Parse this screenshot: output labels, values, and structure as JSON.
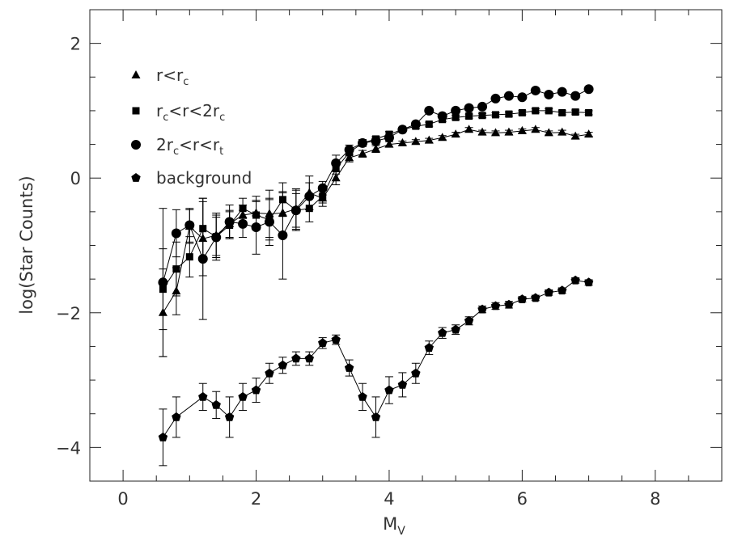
{
  "chart_data": {
    "type": "scatter",
    "xlabel": {
      "main": "M",
      "sub": "V"
    },
    "ylabel": "log(Star Counts)",
    "xlim": [
      -0.5,
      9.0
    ],
    "ylim": [
      -4.5,
      2.5
    ],
    "x_ticks": [
      "0",
      "2",
      "4",
      "6",
      "8"
    ],
    "x_tick_values": [
      0,
      2,
      4,
      6,
      8
    ],
    "y_ticks": [
      "−4",
      "−2",
      "0",
      "2"
    ],
    "y_tick_values": [
      -4,
      -2,
      0,
      2
    ],
    "grid": false,
    "legend_position": "top-left",
    "legend": [
      {
        "id": "inner",
        "marker": "triangle",
        "parts": [
          {
            "t": "r<r"
          },
          {
            "t": "c",
            "sub": true
          }
        ]
      },
      {
        "id": "middle",
        "marker": "square",
        "parts": [
          {
            "t": "r"
          },
          {
            "t": "c",
            "sub": true
          },
          {
            "t": "<r<2r"
          },
          {
            "t": "c",
            "sub": true
          }
        ]
      },
      {
        "id": "outer",
        "marker": "circle",
        "parts": [
          {
            "t": "2r"
          },
          {
            "t": "c",
            "sub": true
          },
          {
            "t": "<r<r"
          },
          {
            "t": "t",
            "sub": true
          }
        ]
      },
      {
        "id": "background",
        "marker": "pentagon",
        "parts": [
          {
            "t": "background"
          }
        ]
      }
    ],
    "series": [
      {
        "id": "inner",
        "marker": "triangle",
        "x": [
          0.6,
          0.8,
          1.0,
          1.2,
          1.4,
          1.6,
          1.8,
          2.0,
          2.2,
          2.4,
          2.6,
          2.8,
          3.0,
          3.2,
          3.4,
          3.6,
          3.8,
          4.0,
          4.2,
          4.4,
          4.6,
          4.8,
          5.0,
          5.2,
          5.4,
          5.6,
          5.8,
          6.0,
          6.2,
          6.4,
          6.6,
          6.8,
          7.0
        ],
        "y": [
          -2.0,
          -1.68,
          -0.72,
          -0.9,
          -0.85,
          -0.68,
          -0.55,
          -0.52,
          -0.53,
          -0.52,
          -0.46,
          -0.22,
          -0.3,
          0.0,
          0.3,
          0.36,
          0.43,
          0.5,
          0.52,
          0.54,
          0.56,
          0.6,
          0.65,
          0.72,
          0.68,
          0.67,
          0.68,
          0.7,
          0.72,
          0.67,
          0.68,
          0.62,
          0.65
        ],
        "err": [
          0.65,
          0.35,
          0.25,
          0.55,
          0.3,
          0.2,
          0.15,
          0.25,
          0.35,
          0.3,
          0.3,
          0.25,
          0.12,
          0.1,
          0.06,
          0.05,
          0.05,
          0.04,
          0.03,
          0.03,
          0.03,
          0.03,
          0.03,
          0.03,
          0.03,
          0.03,
          0.03,
          0.03,
          0.03,
          0.03,
          0.03,
          0.03,
          0.03
        ]
      },
      {
        "id": "middle",
        "marker": "square",
        "x": [
          0.6,
          0.8,
          1.0,
          1.2,
          1.4,
          1.6,
          1.8,
          2.0,
          2.2,
          2.4,
          2.6,
          2.8,
          3.0,
          3.2,
          3.4,
          3.6,
          3.8,
          4.0,
          4.2,
          4.4,
          4.6,
          4.8,
          5.0,
          5.2,
          5.4,
          5.6,
          5.8,
          6.0,
          6.2,
          6.4,
          6.6,
          6.8,
          7.0
        ],
        "y": [
          -1.65,
          -1.35,
          -1.17,
          -0.75,
          -0.87,
          -0.7,
          -0.45,
          -0.55,
          -0.62,
          -0.32,
          -0.48,
          -0.45,
          -0.27,
          0.14,
          0.38,
          0.52,
          0.58,
          0.65,
          0.72,
          0.77,
          0.8,
          0.87,
          0.9,
          0.92,
          0.93,
          0.94,
          0.95,
          0.97,
          1.0,
          1.0,
          0.97,
          0.98,
          0.97
        ],
        "err": [
          0.6,
          0.4,
          0.3,
          0.45,
          0.35,
          0.2,
          0.15,
          0.2,
          0.3,
          0.25,
          0.25,
          0.2,
          0.1,
          0.08,
          0.05,
          0.05,
          0.04,
          0.04,
          0.03,
          0.03,
          0.03,
          0.03,
          0.03,
          0.03,
          0.03,
          0.03,
          0.03,
          0.03,
          0.03,
          0.03,
          0.03,
          0.03,
          0.03
        ]
      },
      {
        "id": "outer",
        "marker": "circle",
        "x": [
          0.6,
          0.8,
          1.0,
          1.2,
          1.4,
          1.6,
          1.8,
          2.0,
          2.2,
          2.4,
          2.6,
          2.8,
          3.0,
          3.2,
          3.4,
          3.6,
          3.8,
          4.0,
          4.2,
          4.4,
          4.6,
          4.8,
          5.0,
          5.2,
          5.4,
          5.6,
          5.8,
          6.0,
          6.2,
          6.4,
          6.6,
          6.8,
          7.0
        ],
        "y": [
          -1.55,
          -0.82,
          -0.7,
          -1.2,
          -0.88,
          -0.65,
          -0.68,
          -0.73,
          -0.65,
          -0.85,
          -0.48,
          -0.27,
          -0.15,
          0.22,
          0.42,
          0.52,
          0.55,
          0.6,
          0.72,
          0.8,
          1.0,
          0.92,
          1.0,
          1.04,
          1.06,
          1.18,
          1.22,
          1.2,
          1.3,
          1.24,
          1.28,
          1.22,
          1.32
        ],
        "err": [
          1.1,
          0.35,
          0.25,
          0.9,
          0.3,
          0.25,
          0.2,
          0.4,
          0.35,
          0.65,
          0.3,
          0.2,
          0.1,
          0.12,
          0.07,
          0.05,
          0.05,
          0.04,
          0.03,
          0.03,
          0.03,
          0.03,
          0.03,
          0.03,
          0.03,
          0.03,
          0.03,
          0.03,
          0.03,
          0.03,
          0.03,
          0.03,
          0.03
        ]
      },
      {
        "id": "background",
        "marker": "pentagon",
        "x": [
          0.6,
          0.8,
          1.2,
          1.4,
          1.6,
          1.8,
          2.0,
          2.2,
          2.4,
          2.6,
          2.8,
          3.0,
          3.2,
          3.4,
          3.6,
          3.8,
          4.0,
          4.2,
          4.4,
          4.6,
          4.8,
          5.0,
          5.2,
          5.4,
          5.6,
          5.8,
          6.0,
          6.2,
          6.4,
          6.6,
          6.8,
          7.0
        ],
        "y": [
          -3.85,
          -3.55,
          -3.25,
          -3.37,
          -3.55,
          -3.25,
          -3.15,
          -2.9,
          -2.78,
          -2.68,
          -2.68,
          -2.45,
          -2.4,
          -2.82,
          -3.25,
          -3.55,
          -3.15,
          -3.07,
          -2.9,
          -2.52,
          -2.3,
          -2.25,
          -2.12,
          -1.95,
          -1.9,
          -1.88,
          -1.8,
          -1.78,
          -1.7,
          -1.67,
          -1.52,
          -1.55
        ],
        "err": [
          0.42,
          0.3,
          0.2,
          0.2,
          0.3,
          0.2,
          0.18,
          0.15,
          0.12,
          0.1,
          0.1,
          0.08,
          0.07,
          0.12,
          0.2,
          0.3,
          0.2,
          0.18,
          0.15,
          0.1,
          0.08,
          0.07,
          0.06,
          0.05,
          0.05,
          0.05,
          0.04,
          0.04,
          0.04,
          0.04,
          0.04,
          0.04
        ]
      }
    ]
  }
}
